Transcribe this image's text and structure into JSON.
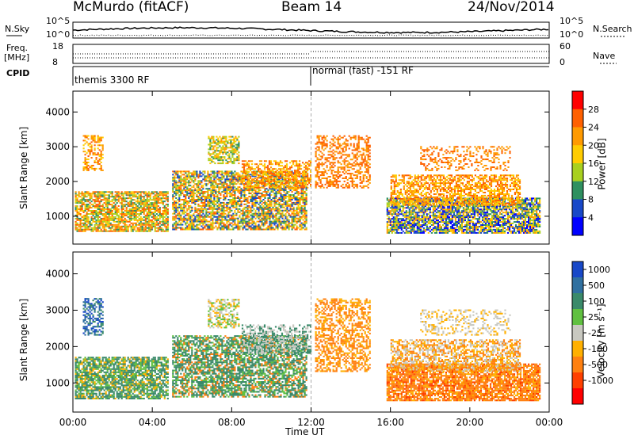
{
  "header": {
    "station": "McMurdo (fitACF)",
    "beam": "Beam 14",
    "date": "24/Nov/2014"
  },
  "aux": {
    "nsky_label": "N.Sky",
    "nsky_ticks": [
      "10^5",
      "10^0"
    ],
    "nsearch_label": "N.Search",
    "nsearch_ticks": [
      "10^5",
      "10^0"
    ],
    "freq_label": "Freq.",
    "freq_unit": "[MHz]",
    "freq_ticks": [
      "18",
      "8"
    ],
    "nave_label": "Nave",
    "nave_ticks": [
      "60",
      "0"
    ],
    "cpid_label": "CPID",
    "cpid_segments": [
      {
        "label": "themis 3300 RF",
        "start_hour": 0
      },
      {
        "label": "normal (fast) -151 RF",
        "start_hour": 12
      }
    ]
  },
  "chart_data": [
    {
      "type": "heatmap",
      "name": "power",
      "ylabel": "Slant Range [km]",
      "xlabel": "Time UT",
      "x_ticks": [
        "00:00",
        "04:00",
        "08:00",
        "12:00",
        "16:00",
        "20:00",
        "00:00"
      ],
      "xlim_hours": [
        0,
        24
      ],
      "ylim": [
        200,
        4600
      ],
      "y_ticks": [
        1000,
        2000,
        3000,
        4000
      ],
      "colorbar_label": "Power [dB]",
      "colorbar_ticks": [
        "28",
        "24",
        "20",
        "16",
        "12",
        "8",
        "4"
      ],
      "colors": [
        "#ff0000",
        "#ff6000",
        "#ff9a00",
        "#ffcc00",
        "#a8d020",
        "#2f9060",
        "#1848c8",
        "#0000ff"
      ],
      "regions": [
        {
          "t0": 0.1,
          "t1": 4.8,
          "r0": 550,
          "r1": 1700,
          "levels": [
            1,
            2,
            3,
            4,
            5
          ],
          "density": 0.75
        },
        {
          "t0": 0.5,
          "t1": 1.5,
          "r0": 2300,
          "r1": 3300,
          "levels": [
            1,
            2,
            3
          ],
          "density": 0.5
        },
        {
          "t0": 5.0,
          "t1": 11.8,
          "r0": 600,
          "r1": 2300,
          "levels": [
            1,
            2,
            3,
            4,
            5,
            6
          ],
          "density": 0.7
        },
        {
          "t0": 6.8,
          "t1": 8.4,
          "r0": 2500,
          "r1": 3300,
          "levels": [
            2,
            3,
            4,
            5
          ],
          "density": 0.6
        },
        {
          "t0": 8.5,
          "t1": 12.0,
          "r0": 1800,
          "r1": 2600,
          "levels": [
            1,
            2,
            3
          ],
          "density": 0.55
        },
        {
          "t0": 12.2,
          "t1": 15.0,
          "r0": 1800,
          "r1": 3300,
          "levels": [
            1,
            2
          ],
          "density": 0.45
        },
        {
          "t0": 15.8,
          "t1": 23.5,
          "r0": 500,
          "r1": 1500,
          "levels": [
            2,
            3,
            4,
            5,
            6,
            7
          ],
          "density": 0.8
        },
        {
          "t0": 16.0,
          "t1": 22.5,
          "r0": 1300,
          "r1": 2200,
          "levels": [
            1,
            2,
            3
          ],
          "density": 0.6
        },
        {
          "t0": 17.5,
          "t1": 22.0,
          "r0": 2300,
          "r1": 3000,
          "levels": [
            1,
            2
          ],
          "density": 0.3
        }
      ]
    },
    {
      "type": "heatmap",
      "name": "velocity",
      "ylabel": "Slant Range [km]",
      "xlabel": "Time UT",
      "x_ticks": [
        "00:00",
        "04:00",
        "08:00",
        "12:00",
        "16:00",
        "20:00",
        "00:00"
      ],
      "xlim_hours": [
        0,
        24
      ],
      "ylim": [
        200,
        4600
      ],
      "y_ticks": [
        1000,
        2000,
        3000,
        4000
      ],
      "colorbar_label": "Velocity [m s⁻¹]",
      "colorbar_ticks": [
        "1000",
        "500",
        "100",
        "25",
        "-25",
        "-100",
        "-500",
        "-1000"
      ],
      "colors": [
        "#1848c8",
        "#3070a0",
        "#3a8a6a",
        "#60c040",
        "#c8c8c0",
        "#ffb000",
        "#ff8010",
        "#ff4000",
        "#ff0000"
      ],
      "regions": [
        {
          "t0": 0.1,
          "t1": 4.8,
          "r0": 550,
          "r1": 1700,
          "levels": [
            2,
            2,
            2,
            3,
            5
          ],
          "density": 0.75
        },
        {
          "t0": 0.5,
          "t1": 1.5,
          "r0": 2300,
          "r1": 3300,
          "levels": [
            0,
            1,
            2
          ],
          "density": 0.5
        },
        {
          "t0": 5.0,
          "t1": 11.8,
          "r0": 600,
          "r1": 2300,
          "levels": [
            2,
            2,
            2,
            3,
            6
          ],
          "density": 0.7
        },
        {
          "t0": 6.8,
          "t1": 8.4,
          "r0": 2500,
          "r1": 3300,
          "levels": [
            3,
            4,
            5
          ],
          "density": 0.55
        },
        {
          "t0": 8.5,
          "t1": 12.0,
          "r0": 1800,
          "r1": 2600,
          "levels": [
            2,
            4
          ],
          "density": 0.5
        },
        {
          "t0": 12.2,
          "t1": 15.0,
          "r0": 1300,
          "r1": 3300,
          "levels": [
            6,
            6,
            5
          ],
          "density": 0.5
        },
        {
          "t0": 15.8,
          "t1": 23.5,
          "r0": 500,
          "r1": 1500,
          "levels": [
            6,
            6,
            6,
            7,
            5
          ],
          "density": 0.8
        },
        {
          "t0": 16.0,
          "t1": 22.5,
          "r0": 1300,
          "r1": 2200,
          "levels": [
            6,
            5,
            4
          ],
          "density": 0.6
        },
        {
          "t0": 17.5,
          "t1": 22.0,
          "r0": 2300,
          "r1": 3000,
          "levels": [
            4,
            5
          ],
          "density": 0.3
        }
      ]
    }
  ]
}
